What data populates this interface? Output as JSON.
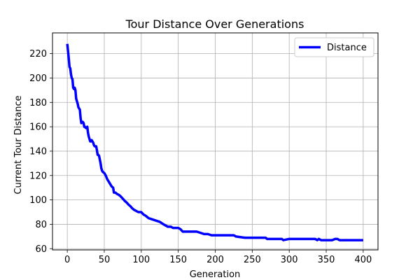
{
  "chart_data": {
    "type": "line",
    "title": "Tour Distance Over Generations",
    "xlabel": "Generation",
    "ylabel": "Current Tour Distance",
    "xlim": [
      -20,
      420
    ],
    "ylim": [
      59,
      237
    ],
    "xticks": [
      0,
      50,
      100,
      150,
      200,
      250,
      300,
      350,
      400
    ],
    "yticks": [
      60,
      80,
      100,
      120,
      140,
      160,
      180,
      200,
      220
    ],
    "grid": true,
    "legend_position": "top-right",
    "series": [
      {
        "name": "Distance",
        "color": "#0000ff",
        "points": [
          [
            0,
            228
          ],
          [
            1,
            222
          ],
          [
            2,
            216
          ],
          [
            3,
            209
          ],
          [
            4,
            208
          ],
          [
            5,
            203
          ],
          [
            6,
            200
          ],
          [
            7,
            199
          ],
          [
            8,
            192
          ],
          [
            9,
            191
          ],
          [
            10,
            192
          ],
          [
            11,
            190
          ],
          [
            12,
            183
          ],
          [
            13,
            181
          ],
          [
            14,
            179
          ],
          [
            15,
            176
          ],
          [
            16,
            175
          ],
          [
            17,
            174
          ],
          [
            18,
            167
          ],
          [
            19,
            163
          ],
          [
            20,
            164
          ],
          [
            21,
            164
          ],
          [
            22,
            163
          ],
          [
            23,
            160
          ],
          [
            24,
            160
          ],
          [
            25,
            159
          ],
          [
            26,
            159
          ],
          [
            27,
            160
          ],
          [
            28,
            155
          ],
          [
            29,
            152
          ],
          [
            30,
            150
          ],
          [
            31,
            148
          ],
          [
            32,
            148
          ],
          [
            33,
            149
          ],
          [
            34,
            148
          ],
          [
            35,
            147
          ],
          [
            36,
            145
          ],
          [
            37,
            144
          ],
          [
            38,
            144
          ],
          [
            39,
            144
          ],
          [
            40,
            141
          ],
          [
            41,
            137
          ],
          [
            42,
            137
          ],
          [
            43,
            136
          ],
          [
            44,
            133
          ],
          [
            45,
            130
          ],
          [
            46,
            126
          ],
          [
            47,
            124
          ],
          [
            48,
            123
          ],
          [
            50,
            122
          ],
          [
            52,
            120
          ],
          [
            54,
            117
          ],
          [
            56,
            115
          ],
          [
            58,
            113
          ],
          [
            60,
            111
          ],
          [
            62,
            110
          ],
          [
            63,
            106
          ],
          [
            65,
            106
          ],
          [
            67,
            105
          ],
          [
            70,
            104
          ],
          [
            72,
            103
          ],
          [
            75,
            101
          ],
          [
            78,
            99
          ],
          [
            80,
            98
          ],
          [
            83,
            96
          ],
          [
            85,
            95
          ],
          [
            88,
            93
          ],
          [
            90,
            92
          ],
          [
            93,
            91
          ],
          [
            96,
            90
          ],
          [
            100,
            90
          ],
          [
            103,
            88
          ],
          [
            106,
            87
          ],
          [
            110,
            85
          ],
          [
            115,
            84
          ],
          [
            120,
            83
          ],
          [
            125,
            82
          ],
          [
            130,
            80
          ],
          [
            133,
            79
          ],
          [
            136,
            78
          ],
          [
            140,
            78
          ],
          [
            143,
            77
          ],
          [
            150,
            77
          ],
          [
            153,
            76
          ],
          [
            156,
            74
          ],
          [
            160,
            74
          ],
          [
            170,
            74
          ],
          [
            175,
            74
          ],
          [
            180,
            73
          ],
          [
            185,
            72
          ],
          [
            190,
            72
          ],
          [
            195,
            71
          ],
          [
            200,
            71
          ],
          [
            215,
            71
          ],
          [
            225,
            71
          ],
          [
            228,
            70
          ],
          [
            240,
            69
          ],
          [
            260,
            69
          ],
          [
            268,
            69
          ],
          [
            270,
            68
          ],
          [
            285,
            68
          ],
          [
            290,
            68
          ],
          [
            292,
            67
          ],
          [
            300,
            68
          ],
          [
            320,
            68
          ],
          [
            335,
            68
          ],
          [
            338,
            67
          ],
          [
            340,
            68
          ],
          [
            343,
            67
          ],
          [
            350,
            67
          ],
          [
            358,
            67
          ],
          [
            362,
            68
          ],
          [
            365,
            68
          ],
          [
            368,
            67
          ],
          [
            380,
            67
          ],
          [
            400,
            67
          ]
        ]
      }
    ]
  }
}
